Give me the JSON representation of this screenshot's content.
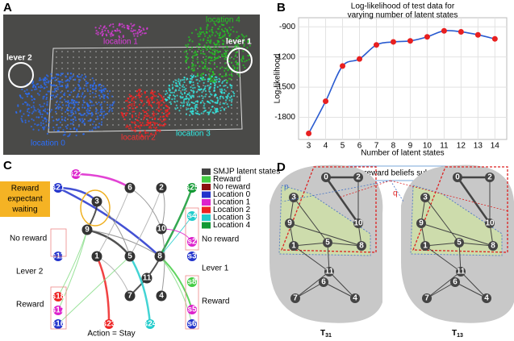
{
  "panel_labels": [
    "A",
    "B",
    "C",
    "D"
  ],
  "panel_a": {
    "lever_left": "lever 2",
    "lever_right": "lever 1",
    "location_0": "location 0",
    "location_1": "location 1",
    "location_2": "location 2",
    "location_3": "location 3",
    "location_4": "location 4"
  },
  "chart_data": {
    "type": "scatter",
    "title": [
      "Log-likelihood of test data for",
      "varying number of latent states"
    ],
    "x_label": "Number of latent states",
    "y_label": "Log-likelihood",
    "x": [
      3,
      4,
      5,
      6,
      7,
      8,
      9,
      10,
      11,
      12,
      13,
      14
    ],
    "values": [
      -1960,
      -1640,
      -1290,
      -1220,
      -1080,
      -1050,
      -1040,
      -1000,
      -940,
      -950,
      -980,
      -1020
    ],
    "xlim": [
      2.4,
      14.7
    ],
    "ylim": [
      -2020,
      -810
    ],
    "xticks": [
      3,
      4,
      5,
      6,
      7,
      8,
      9,
      10,
      11,
      12,
      13,
      14
    ],
    "yticks": [
      -1800,
      -1500,
      -1200,
      -900
    ],
    "grid": true,
    "color": "#e82020",
    "fit_color": "#2a5bd0"
  },
  "panel_c": {
    "reward_expectant": [
      "Reward",
      "expectant",
      "waiting"
    ],
    "left_no_reward": "No reward",
    "left_lever": "Lever 2",
    "left_reward": "Reward",
    "right_no_reward": "No reward",
    "right_lever": "Lever 1",
    "right_reward": "Reward",
    "action": "Action = Stay",
    "legend": [
      {
        "name": "SMJP latent states",
        "color": "#444444"
      },
      {
        "name": "Reward",
        "color": "#44cc44"
      },
      {
        "name": "No reward",
        "color": "#8b1010"
      },
      {
        "name": "Location 0",
        "color": "#2233cc"
      },
      {
        "name": "Location 1",
        "color": "#dd22cc"
      },
      {
        "name": "Location 2",
        "color": "#ee2222"
      },
      {
        "name": "Location 3",
        "color": "#22cccc"
      },
      {
        "name": "Location 4",
        "color": "#119933"
      }
    ],
    "nodes": [
      "s21",
      "s22",
      "3",
      "6",
      "2",
      "s25",
      "9",
      "10",
      "s4",
      "s2",
      "s11",
      "1",
      "5",
      "8",
      "s3",
      "11",
      "7",
      "4",
      "s18",
      "s17",
      "s16",
      "s23",
      "s24",
      "s5",
      "s6",
      "s8"
    ]
  },
  "panel_d": {
    "title": "Persistent reward beliefs subspaces",
    "p": "p",
    "q": "q",
    "nodes": [
      "0",
      "2",
      "3",
      "9",
      "10",
      "1",
      "5",
      "8",
      "11",
      "7",
      "4",
      "6"
    ],
    "left_label": {
      "main": "T",
      "sub": "31"
    },
    "right_label": {
      "main": "T",
      "sub": "13"
    }
  }
}
